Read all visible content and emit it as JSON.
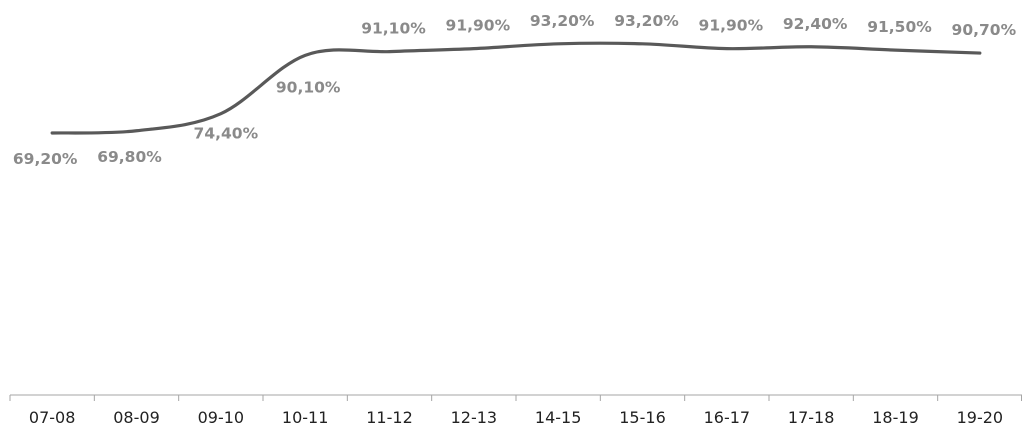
{
  "chart_data": {
    "type": "line",
    "categories": [
      "07-08",
      "08-09",
      "09-10",
      "10-11",
      "11-12",
      "12-13",
      "14-15",
      "15-16",
      "16-17",
      "17-18",
      "18-19",
      "19-20"
    ],
    "series": [
      {
        "values": [
          69.2,
          69.8,
          74.4,
          90.1,
          91.1,
          91.9,
          93.2,
          93.2,
          91.9,
          92.4,
          91.5,
          90.7
        ],
        "labels": [
          "69,20%",
          "69,80%",
          "74,40%",
          "90,10%",
          "91,10%",
          "91,90%",
          "93,20%",
          "93,20%",
          "91,90%",
          "92,40%",
          "91,50%",
          "90,70%"
        ]
      }
    ],
    "colors": {
      "line": "#595959",
      "data_label": "#8a8a8a",
      "axis": "#a6a6a6",
      "tick_label": "#222222"
    },
    "smooth": true,
    "grid": false,
    "legend": "none"
  }
}
